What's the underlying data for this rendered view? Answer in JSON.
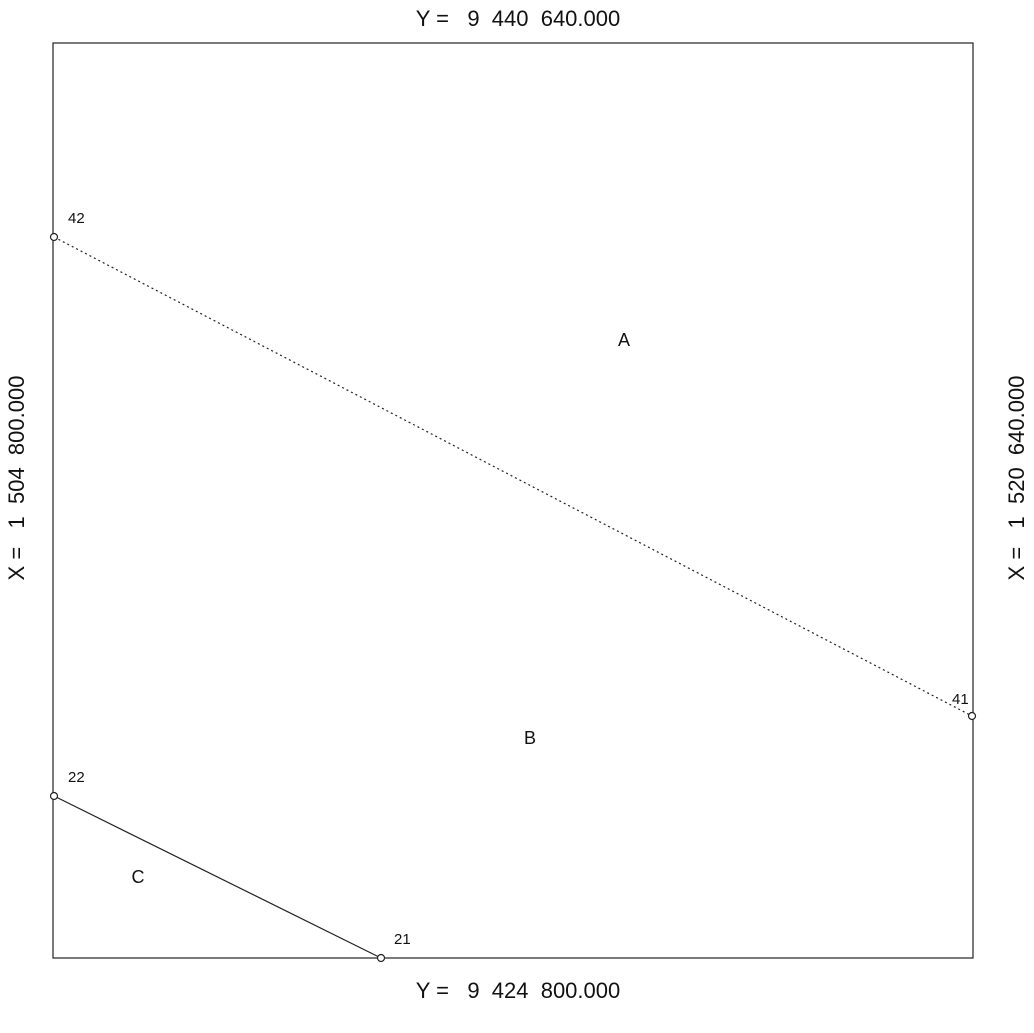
{
  "labels": {
    "top": "Y =   9  440  640.000",
    "bottom": "Y =   9  424  800.000",
    "left": "X =   1  504  800.000",
    "right": "X =   1  520  640.000"
  },
  "points": [
    {
      "id": "42"
    },
    {
      "id": "41"
    },
    {
      "id": "22"
    },
    {
      "id": "21"
    }
  ],
  "lines": [
    {
      "from": "42",
      "to": "41",
      "style": "dotted"
    },
    {
      "from": "22",
      "to": "21",
      "style": "solid"
    }
  ],
  "regions": [
    {
      "name": "A"
    },
    {
      "name": "B"
    },
    {
      "name": "C"
    }
  ]
}
